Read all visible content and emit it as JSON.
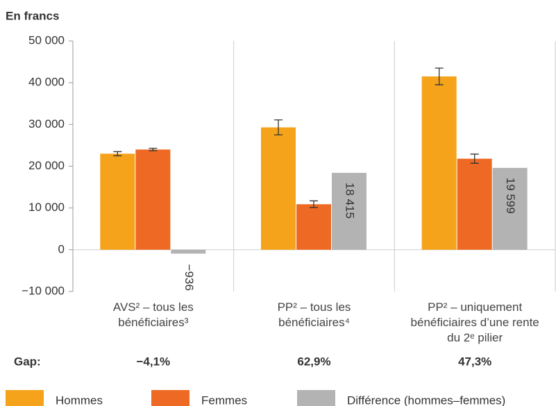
{
  "chart_data": {
    "type": "bar",
    "ylabel": "En francs",
    "categories": [
      "AVS² – tous les bénéficiaires³",
      "PP² – tous les bénéficiaires⁴",
      "PP² – uniquement bénéficiaires d’une rente du 2ᵉ pilier"
    ],
    "series": [
      {
        "name": "Hommes",
        "color": "#f5a31a",
        "values": [
          23000,
          29300,
          41500
        ],
        "errors": [
          500,
          1800,
          2000
        ]
      },
      {
        "name": "Femmes",
        "color": "#ee6a24",
        "values": [
          24000,
          10900,
          21800
        ],
        "errors": [
          300,
          800,
          1100
        ]
      },
      {
        "name": "Différence (hommes–femmes)",
        "color": "#b3b3b3",
        "values": [
          -936,
          18415,
          19599
        ],
        "value_labels": [
          "−936",
          "18 415",
          "19 599"
        ]
      }
    ],
    "ylim": [
      -10000,
      50000
    ],
    "yticks": [
      {
        "value": -10000,
        "label": "−10 000"
      },
      0,
      {
        "value": 10000,
        "label": "10 000"
      },
      {
        "value": 20000,
        "label": "20 000"
      },
      {
        "value": 30000,
        "label": "30 000"
      },
      {
        "value": 40000,
        "label": "40 000"
      },
      {
        "value": 50000,
        "label": "50 000"
      }
    ],
    "gap": {
      "label": "Gap:",
      "values": [
        -4.1,
        62.9,
        47.3
      ],
      "value_labels": [
        "−4,1%",
        "62,9%",
        "47,3%"
      ]
    },
    "legend": "bottom"
  }
}
